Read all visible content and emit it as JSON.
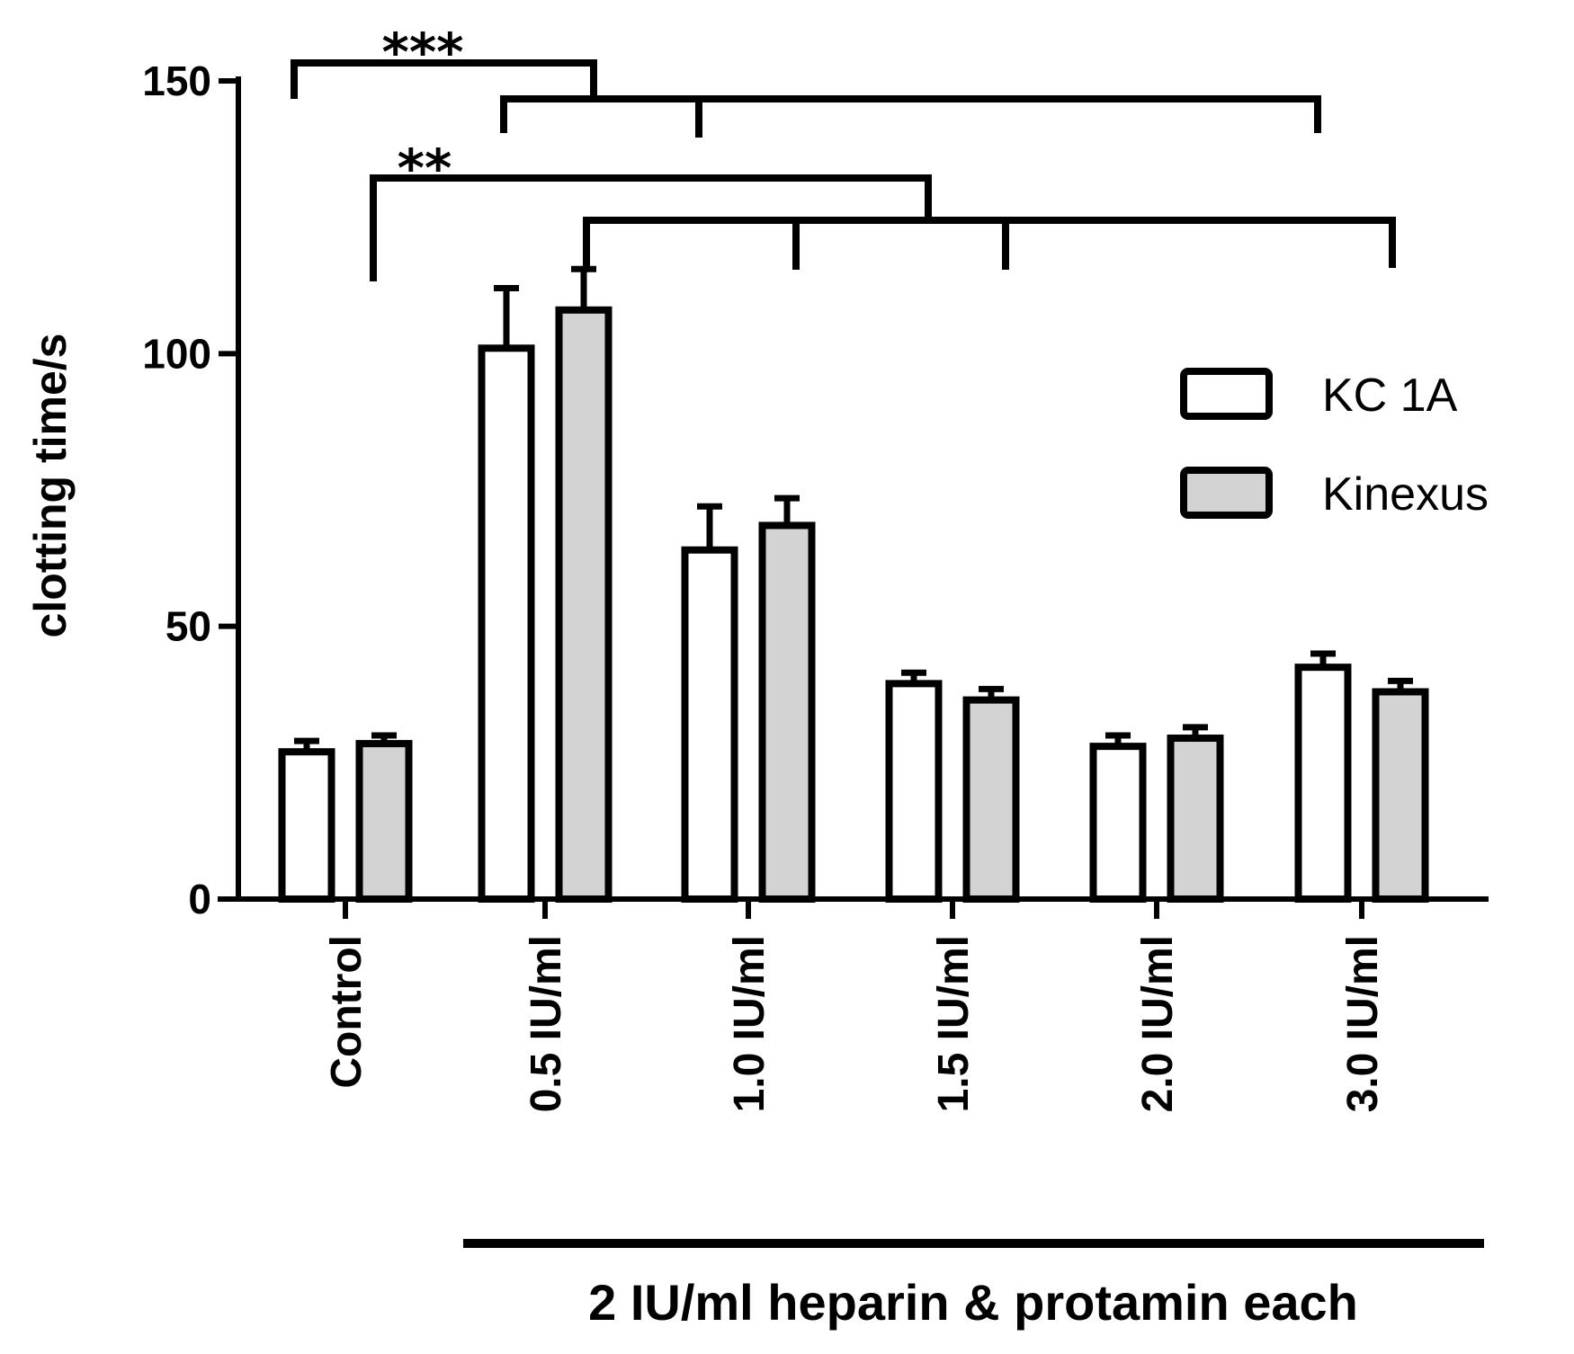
{
  "chart_data": {
    "type": "bar",
    "ylabel": "clotting time/s",
    "xlabel": "",
    "ylim": [
      0,
      150
    ],
    "yticks": [
      0,
      50,
      100,
      150
    ],
    "categories": [
      "Control",
      "0.5 IU/ml",
      "1.0 IU/ml",
      "1.5 IU/ml",
      "2.0 IU/ml",
      "3.0 IU/ml"
    ],
    "series": [
      {
        "name": "KC 1A",
        "color": "#ffffff",
        "values": [
          27,
          101,
          64,
          39.5,
          28,
          42.5
        ],
        "errors": [
          2,
          11,
          8,
          2,
          2,
          2.5
        ]
      },
      {
        "name": "Kinexus",
        "color": "#d3d3d3",
        "values": [
          28.5,
          108,
          68.5,
          36.5,
          29.5,
          38
        ],
        "errors": [
          1.5,
          7.5,
          5,
          2,
          2,
          2
        ]
      }
    ],
    "group_annotation": "2 IU/ml heparin & protamin each",
    "significance": [
      {
        "label": "***"
      },
      {
        "label": "**"
      }
    ],
    "legend_position": "right",
    "grid": false
  }
}
